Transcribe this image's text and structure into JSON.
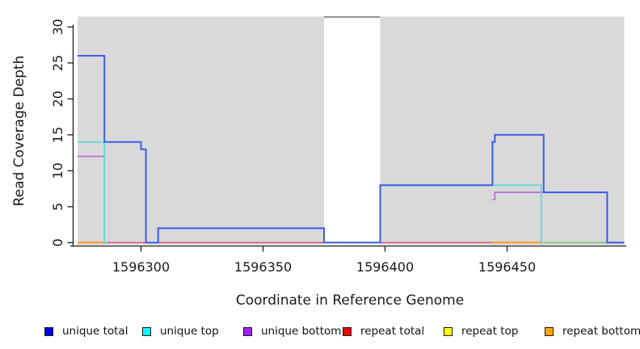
{
  "chart_data": {
    "type": "line",
    "subtype": "step-coverage",
    "title": "",
    "xlabel": "Coordinate in Reference Genome",
    "ylabel": "Read Coverage Depth",
    "xlim": [
      1596274,
      1596498
    ],
    "ylim": [
      -0.3,
      32.3
    ],
    "x_ticks": [
      1596300,
      1596350,
      1596400,
      1596450
    ],
    "y_ticks": [
      0,
      5,
      10,
      15,
      20,
      25,
      30
    ],
    "grid": false,
    "legend_position": "bottom",
    "background_regions": {
      "color": "#d9d9d9",
      "regions": [
        {
          "from": 1596274,
          "to": 1596375
        },
        {
          "from": 1596398,
          "to": 1596498
        }
      ]
    },
    "series": [
      {
        "name": "clipped-coverage-top",
        "color": "#959595",
        "width": 2,
        "steps": [
          [
            1596375,
            31.4
          ],
          [
            1596398,
            null
          ]
        ]
      },
      {
        "name": "repeat total",
        "color": "#de5c7c",
        "width": 1.6,
        "steps": [
          [
            1596274,
            0
          ],
          [
            1596491,
            null
          ]
        ]
      },
      {
        "name": "repeat bottom",
        "color": "#ff9e19",
        "width": 2,
        "steps": [
          [
            1596274,
            0
          ],
          [
            1596285,
            null
          ],
          [
            1596444,
            0
          ],
          [
            1596464,
            null
          ]
        ]
      },
      {
        "name": "repeat top + unique top overlap",
        "color": "#7cc87c",
        "width": 1.6,
        "steps": [
          [
            1596464,
            0
          ],
          [
            1596491,
            null
          ]
        ]
      },
      {
        "name": "unique bottom",
        "color": "#b266de",
        "width": 1.6,
        "steps": [
          [
            1596274,
            12
          ],
          [
            1596285,
            0
          ],
          [
            1596286,
            null
          ],
          [
            1596444,
            6
          ],
          [
            1596445,
            7
          ],
          [
            1596491,
            0
          ],
          [
            1596498,
            null
          ]
        ]
      },
      {
        "name": "unique top",
        "color": "#52dcdc",
        "width": 1.6,
        "steps": [
          [
            1596274,
            14
          ],
          [
            1596285,
            0
          ],
          [
            1596286,
            null
          ],
          [
            1596398,
            8
          ],
          [
            1596464,
            0
          ],
          [
            1596465,
            null
          ]
        ]
      },
      {
        "name": "unique total",
        "color": "#3c5ce8",
        "width": 2,
        "steps": [
          [
            1596274,
            26
          ],
          [
            1596285,
            14
          ],
          [
            1596300,
            13
          ],
          [
            1596302,
            0
          ],
          [
            1596307,
            2
          ],
          [
            1596375,
            0
          ],
          [
            1596398,
            8
          ],
          [
            1596444,
            14
          ],
          [
            1596445,
            15
          ],
          [
            1596465,
            7
          ],
          [
            1596491,
            0
          ],
          [
            1596498,
            null
          ]
        ]
      }
    ],
    "legend": [
      {
        "label": "unique total",
        "color": "#0000ee"
      },
      {
        "label": "unique top",
        "color": "#00ffff"
      },
      {
        "label": "unique bottom",
        "color": "#a020f0"
      },
      {
        "label": "repeat total",
        "color": "#ee0000"
      },
      {
        "label": "repeat top",
        "color": "#ffff00"
      },
      {
        "label": "repeat bottom",
        "color": "#ffa500"
      }
    ]
  }
}
